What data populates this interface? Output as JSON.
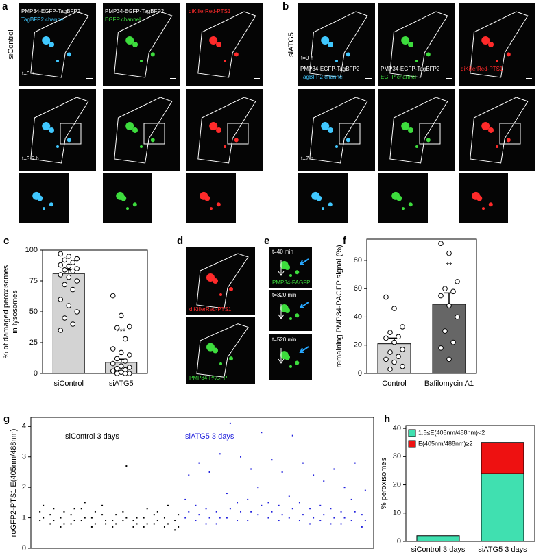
{
  "panel_a": {
    "label": "a",
    "condition": "siControl",
    "channels": [
      [
        "PMP34-EGFP-TagBFP2",
        "TagBFP2 channel"
      ],
      [
        "PMP34-EGFP-TagBFP2",
        "EGFP channel"
      ],
      [
        "diKillerRed-PTS1"
      ]
    ],
    "times": [
      "t=0 h",
      "t=3.5 h"
    ]
  },
  "panel_b": {
    "label": "b",
    "condition": "siATG5",
    "channels": [
      [
        "PMP34-EGFP-TagBFP2",
        "TagBFP2 channel"
      ],
      [
        "PMP34-EGFP-TagBFP2",
        "EGFP channel"
      ],
      [
        "diKillerRed-PTS1"
      ]
    ],
    "times": [
      "t=0 h",
      "t=7 h"
    ]
  },
  "panel_d": {
    "label": "d",
    "channels": [
      "diKillerRed-PTS1",
      "PMP34-PAGFP"
    ]
  },
  "panel_e": {
    "label": "e",
    "times": [
      "t=40 min",
      "t=320 min",
      "t=520 min"
    ],
    "channel": "PMP34-PAGFP"
  },
  "chart_data": [
    {
      "panel": "c",
      "type": "bar",
      "ylabel": [
        "% of damaged peroxisomes",
        "in lysosomes"
      ],
      "categories": [
        "siControl",
        "siATG5"
      ],
      "values": [
        81,
        9
      ],
      "errors": [
        3,
        2.5
      ],
      "colors": [
        "#d3d3d3",
        "#d3d3d3"
      ],
      "points": [
        [
          97,
          95,
          93,
          92,
          90,
          88,
          87,
          85,
          84,
          83,
          80,
          78,
          75,
          72,
          68,
          60,
          55,
          50,
          45,
          40,
          35
        ],
        [
          63,
          47,
          38,
          37,
          28,
          20,
          17,
          15,
          12,
          10,
          8,
          6,
          5,
          4,
          3,
          2,
          1,
          0,
          0,
          0
        ]
      ],
      "annotation": "***",
      "ylim": [
        0,
        100
      ],
      "yticks": [
        0,
        25,
        50,
        75,
        100
      ]
    },
    {
      "panel": "f",
      "type": "bar",
      "ylabel": [
        "remaining PMP34-PAGFP signal (%)"
      ],
      "categories": [
        "Control",
        "Bafilomycin A1"
      ],
      "values": [
        21,
        49
      ],
      "errors": [
        4,
        8
      ],
      "colors": [
        "#d3d3d3",
        "#666666"
      ],
      "points": [
        [
          54,
          46,
          33,
          29,
          26,
          25,
          22,
          17,
          15,
          12,
          10,
          8,
          5,
          3
        ],
        [
          92,
          85,
          65,
          60,
          58,
          55,
          48,
          40,
          30,
          22,
          18,
          10
        ]
      ],
      "annotation": "**",
      "ylim": [
        0,
        95
      ],
      "yticks": [
        0,
        20,
        40,
        60,
        80
      ]
    },
    {
      "panel": "g",
      "type": "scatter",
      "ylabel": "roGFP2-PTS1 E(405nm/488nm)",
      "xlim": [
        0,
        33
      ],
      "ylim": [
        0,
        4.3
      ],
      "yticks": [
        0,
        1,
        2,
        3,
        4
      ],
      "series": [
        {
          "name": "siControl 3 days",
          "color": "#000000",
          "x": [
            1,
            2,
            3,
            4,
            5,
            6,
            7,
            8,
            9,
            10,
            11,
            12,
            13,
            14
          ],
          "values": [
            [
              1.2,
              1.0,
              0.9,
              1.4
            ],
            [
              1.1,
              0.9,
              0.8,
              1.3
            ],
            [
              1.0,
              0.8,
              0.7,
              1.2
            ],
            [
              1.1,
              0.9,
              0.8,
              1.3
            ],
            [
              1.3,
              1.0,
              0.9,
              1.5
            ],
            [
              1.0,
              0.8,
              0.7,
              1.2
            ],
            [
              1.1,
              0.9,
              1.4,
              0.8
            ],
            [
              0.9,
              0.8,
              0.7,
              1.1
            ],
            [
              1.2,
              1.0,
              0.9,
              2.7
            ],
            [
              0.9,
              0.8,
              0.7,
              1.0
            ],
            [
              1.0,
              0.8,
              0.7,
              1.3
            ],
            [
              1.1,
              0.9,
              0.8,
              1.2
            ],
            [
              1.0,
              0.8,
              0.7,
              1.4
            ],
            [
              0.9,
              0.7,
              0.6,
              1.1
            ]
          ]
        },
        {
          "name": "siATG5 3 days",
          "color": "#2222dd",
          "x": [
            15,
            16,
            17,
            18,
            19,
            20,
            21,
            22,
            23,
            24,
            25,
            26,
            27,
            28,
            29,
            30,
            31,
            32
          ],
          "values": [
            [
              1.6,
              1.2,
              1.0,
              2.4
            ],
            [
              1.4,
              1.1,
              0.9,
              2.8
            ],
            [
              1.3,
              1.0,
              0.8,
              2.5
            ],
            [
              1.2,
              1.0,
              0.8,
              3.1
            ],
            [
              1.8,
              1.3,
              1.0,
              4.1
            ],
            [
              1.5,
              1.2,
              0.9,
              3.0
            ],
            [
              1.6,
              1.2,
              0.9,
              2.6
            ],
            [
              2.0,
              1.4,
              1.1,
              3.8
            ],
            [
              1.5,
              1.2,
              1.0,
              2.9
            ],
            [
              1.4,
              1.1,
              0.9,
              2.5
            ],
            [
              1.7,
              1.3,
              1.0,
              3.7
            ],
            [
              1.5,
              1.1,
              0.9,
              2.8
            ],
            [
              1.3,
              1.0,
              0.8,
              2.4
            ],
            [
              1.4,
              1.1,
              0.9,
              2.2
            ],
            [
              1.3,
              1.0,
              0.8,
              2.6
            ],
            [
              1.2,
              1.0,
              0.8,
              2.0
            ],
            [
              1.6,
              1.2,
              0.9,
              2.8
            ],
            [
              1.1,
              0.9,
              0.7,
              1.9
            ]
          ]
        }
      ]
    },
    {
      "panel": "h",
      "type": "stacked-bar",
      "ylabel": "% peroxisomes",
      "categories": [
        "siControl 3 days",
        "siATG5 3 days"
      ],
      "series": [
        {
          "name": "1.5≤E(405nm/488nm)<2",
          "color": "#40e0b0",
          "values": [
            2,
            24
          ]
        },
        {
          "name": "E(405nm/488nm)≥2",
          "color": "#ee1111",
          "values": [
            0,
            11
          ]
        }
      ],
      "ylim": [
        0,
        41
      ],
      "yticks": [
        0,
        10,
        20,
        30,
        40
      ]
    }
  ]
}
